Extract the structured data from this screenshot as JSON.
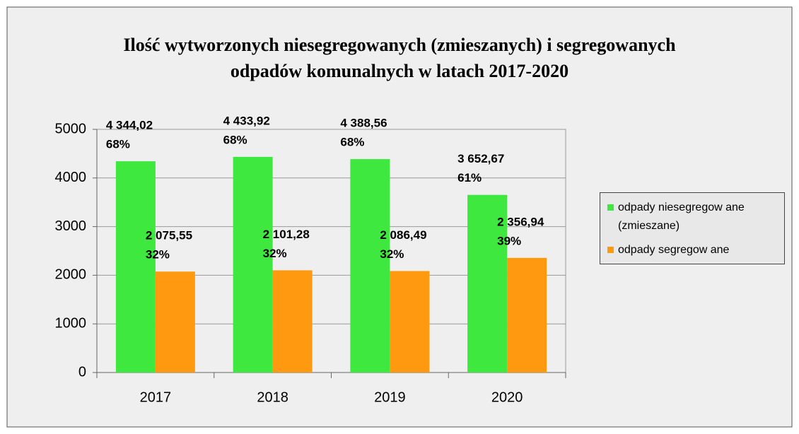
{
  "chart_data": {
    "type": "bar",
    "title": "Ilość wytworzonych niesegregowanych (zmieszanych) i segregowanych",
    "subtitle": "odpadów komunalnych w latach 2017-2020",
    "categories": [
      "2017",
      "2018",
      "2019",
      "2020"
    ],
    "series": [
      {
        "name": "odpady niesegregow ane (zmieszane)",
        "color": "#3ee83e",
        "values": [
          4344.02,
          4433.92,
          4388.56,
          3652.67
        ],
        "value_labels": [
          "4 344,02",
          "4 433,92",
          "4 388,56",
          "3 652,67"
        ],
        "share_labels": [
          "68%",
          "68%",
          "68%",
          "61%"
        ]
      },
      {
        "name": "odpady segregow ane",
        "color": "#ff9a10",
        "values": [
          2075.55,
          2101.28,
          2086.49,
          2356.94
        ],
        "value_labels": [
          "2 075,55",
          "2 101,28",
          "2 086,49",
          "2 356,94"
        ],
        "share_labels": [
          "32%",
          "32%",
          "32%",
          "39%"
        ]
      }
    ],
    "ylim": [
      0,
      5000
    ],
    "yticks": [
      0,
      1000,
      2000,
      3000,
      4000,
      5000
    ],
    "grid": true,
    "legend": "right"
  }
}
